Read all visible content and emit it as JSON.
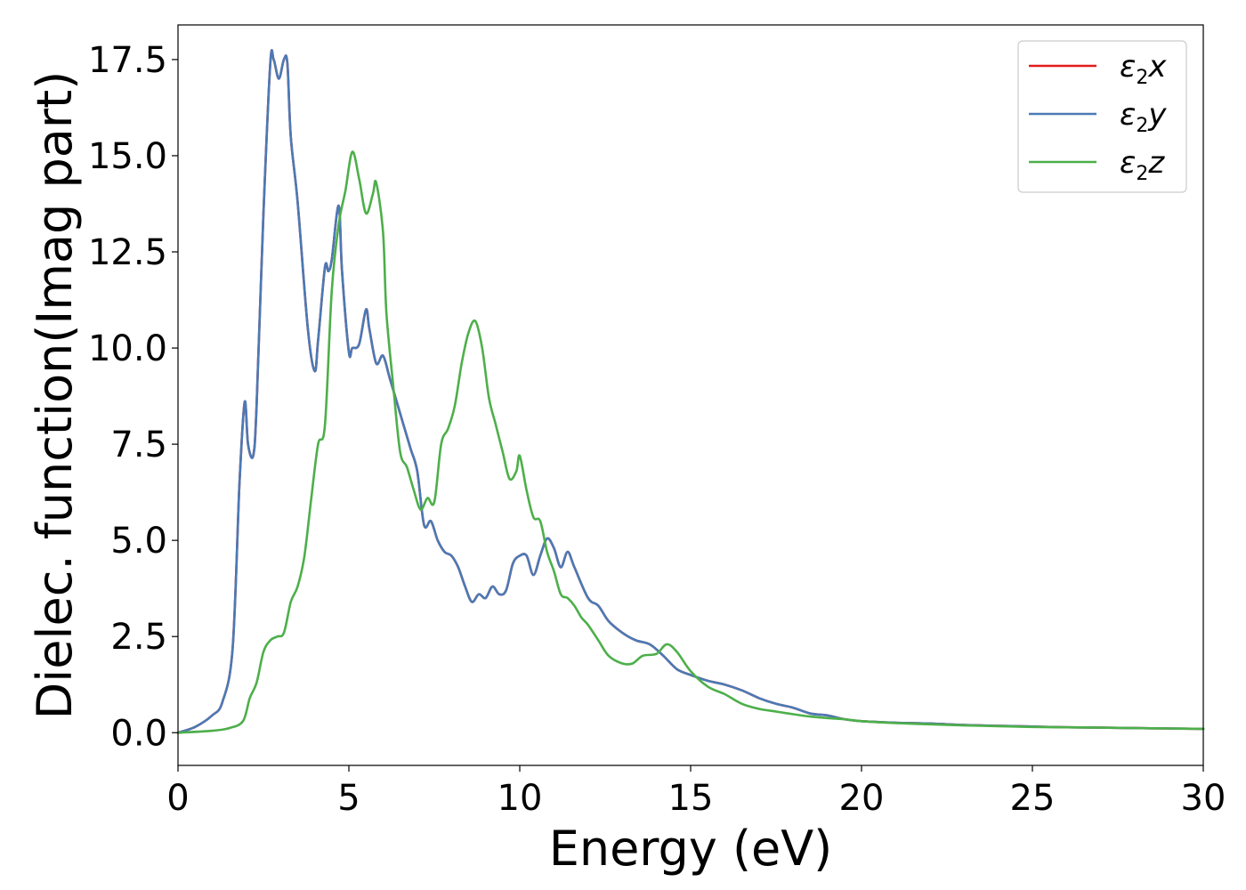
{
  "chart_data": {
    "type": "line",
    "xlabel": "Energy (eV)",
    "ylabel": "Dielec. function(Imag part)",
    "xlim": [
      0,
      30
    ],
    "ylim": [
      -0.85,
      18.4
    ],
    "xticks": [
      0,
      5,
      10,
      15,
      20,
      25,
      30
    ],
    "xtick_labels": [
      "0",
      "5",
      "10",
      "15",
      "20",
      "25",
      "30"
    ],
    "yticks": [
      0,
      2.5,
      5,
      7.5,
      10,
      12.5,
      15,
      17.5
    ],
    "ytick_labels": [
      "0.0",
      "2.5",
      "5.0",
      "7.5",
      "10.0",
      "12.5",
      "15.0",
      "17.5"
    ],
    "grid": false,
    "legend_position": "top-right",
    "series": [
      {
        "name": "ε2x",
        "legend_base": "ε",
        "legend_sub": "2",
        "legend_tail": "x",
        "color": "#e41a1c",
        "x": [
          0,
          0.5,
          1,
          1.3,
          1.6,
          1.8,
          1.95,
          2.05,
          2.2,
          2.3,
          2.5,
          2.7,
          2.8,
          2.95,
          3.1,
          3.2,
          3.3,
          3.5,
          3.8,
          4.0,
          4.1,
          4.3,
          4.4,
          4.5,
          4.7,
          4.8,
          5.0,
          5.1,
          5.3,
          5.5,
          5.6,
          5.8,
          6.0,
          6.2,
          6.5,
          6.8,
          7.0,
          7.2,
          7.4,
          7.6,
          7.8,
          8.0,
          8.2,
          8.4,
          8.6,
          8.8,
          9.0,
          9.2,
          9.4,
          9.6,
          9.8,
          10.0,
          10.2,
          10.4,
          10.6,
          10.8,
          11.0,
          11.2,
          11.4,
          11.6,
          12.0,
          12.3,
          12.6,
          13.0,
          13.4,
          13.8,
          14.2,
          14.6,
          15.0,
          15.5,
          16.0,
          16.5,
          17.0,
          17.5,
          18.0,
          18.5,
          19.0,
          19.5,
          20.0,
          21.0,
          22.0,
          23.0,
          24.0,
          25.0,
          26.0,
          27.0,
          28.0,
          29.0,
          30.0
        ],
        "values": [
          0,
          0.15,
          0.45,
          0.8,
          2.2,
          6.5,
          8.6,
          7.5,
          7.2,
          8.5,
          13.5,
          17.4,
          17.5,
          17.0,
          17.5,
          17.4,
          15.5,
          13.8,
          10.5,
          9.4,
          10.2,
          12.1,
          12.0,
          12.3,
          13.7,
          12.0,
          9.9,
          10.0,
          10.1,
          11.0,
          10.5,
          9.6,
          9.8,
          9.2,
          8.3,
          7.4,
          6.8,
          5.4,
          5.5,
          5.0,
          4.7,
          4.6,
          4.3,
          3.8,
          3.4,
          3.6,
          3.5,
          3.8,
          3.6,
          3.7,
          4.4,
          4.6,
          4.6,
          4.1,
          4.6,
          5.05,
          4.8,
          4.3,
          4.7,
          4.3,
          3.5,
          3.3,
          2.9,
          2.6,
          2.4,
          2.3,
          2.0,
          1.65,
          1.5,
          1.35,
          1.25,
          1.1,
          0.9,
          0.75,
          0.65,
          0.5,
          0.45,
          0.35,
          0.3,
          0.26,
          0.24,
          0.2,
          0.18,
          0.16,
          0.14,
          0.13,
          0.12,
          0.11,
          0.1
        ]
      },
      {
        "name": "ε2y",
        "legend_base": "ε",
        "legend_sub": "2",
        "legend_tail": "y",
        "color": "#4a7ab5",
        "x": [
          0,
          0.5,
          1,
          1.3,
          1.6,
          1.8,
          1.95,
          2.05,
          2.2,
          2.3,
          2.5,
          2.7,
          2.8,
          2.95,
          3.1,
          3.2,
          3.3,
          3.5,
          3.8,
          4.0,
          4.1,
          4.3,
          4.4,
          4.5,
          4.7,
          4.8,
          5.0,
          5.1,
          5.3,
          5.5,
          5.6,
          5.8,
          6.0,
          6.2,
          6.5,
          6.8,
          7.0,
          7.2,
          7.4,
          7.6,
          7.8,
          8.0,
          8.2,
          8.4,
          8.6,
          8.8,
          9.0,
          9.2,
          9.4,
          9.6,
          9.8,
          10.0,
          10.2,
          10.4,
          10.6,
          10.8,
          11.0,
          11.2,
          11.4,
          11.6,
          12.0,
          12.3,
          12.6,
          13.0,
          13.4,
          13.8,
          14.2,
          14.6,
          15.0,
          15.5,
          16.0,
          16.5,
          17.0,
          17.5,
          18.0,
          18.5,
          19.0,
          19.5,
          20.0,
          21.0,
          22.0,
          23.0,
          24.0,
          25.0,
          26.0,
          27.0,
          28.0,
          29.0,
          30.0
        ],
        "values": [
          0,
          0.15,
          0.45,
          0.8,
          2.2,
          6.5,
          8.6,
          7.5,
          7.2,
          8.5,
          13.5,
          17.4,
          17.5,
          17.0,
          17.5,
          17.4,
          15.5,
          13.8,
          10.5,
          9.4,
          10.2,
          12.1,
          12.0,
          12.3,
          13.7,
          12.0,
          9.9,
          10.0,
          10.1,
          11.0,
          10.5,
          9.6,
          9.8,
          9.2,
          8.3,
          7.4,
          6.8,
          5.4,
          5.5,
          5.0,
          4.7,
          4.6,
          4.3,
          3.8,
          3.4,
          3.6,
          3.5,
          3.8,
          3.6,
          3.7,
          4.4,
          4.6,
          4.6,
          4.1,
          4.6,
          5.05,
          4.8,
          4.3,
          4.7,
          4.3,
          3.5,
          3.3,
          2.9,
          2.6,
          2.4,
          2.3,
          2.0,
          1.65,
          1.5,
          1.35,
          1.25,
          1.1,
          0.9,
          0.75,
          0.65,
          0.5,
          0.45,
          0.35,
          0.3,
          0.26,
          0.24,
          0.2,
          0.18,
          0.16,
          0.14,
          0.13,
          0.12,
          0.11,
          0.1
        ]
      },
      {
        "name": "ε2z",
        "legend_base": "ε",
        "legend_sub": "2",
        "legend_tail": "z",
        "color": "#4daf4a",
        "x": [
          0,
          1,
          1.5,
          1.9,
          2.1,
          2.3,
          2.5,
          2.7,
          2.9,
          3.1,
          3.3,
          3.5,
          3.7,
          3.9,
          4.1,
          4.3,
          4.5,
          4.7,
          4.9,
          5.1,
          5.3,
          5.5,
          5.7,
          5.8,
          6.0,
          6.1,
          6.3,
          6.5,
          6.7,
          6.9,
          7.1,
          7.3,
          7.5,
          7.7,
          7.9,
          8.1,
          8.3,
          8.5,
          8.7,
          8.9,
          9.1,
          9.3,
          9.5,
          9.7,
          9.9,
          10.0,
          10.2,
          10.4,
          10.6,
          10.8,
          11.0,
          11.2,
          11.4,
          11.6,
          11.8,
          12.0,
          12.3,
          12.6,
          13.0,
          13.3,
          13.6,
          14.0,
          14.3,
          14.6,
          15.0,
          15.5,
          16.0,
          16.5,
          17.0,
          17.5,
          18.0,
          18.5,
          19.0,
          19.5,
          20.0,
          21.0,
          22.0,
          23.0,
          24.0,
          25.0,
          26.0,
          27.0,
          28.0,
          29.0,
          30.0
        ],
        "values": [
          0,
          0.05,
          0.12,
          0.3,
          0.9,
          1.3,
          2.1,
          2.4,
          2.5,
          2.6,
          3.4,
          3.8,
          4.6,
          6.1,
          7.5,
          8.0,
          11.5,
          13.2,
          14.1,
          15.1,
          14.4,
          13.5,
          14.0,
          14.3,
          13.0,
          10.9,
          9.0,
          7.3,
          6.9,
          6.3,
          5.8,
          6.1,
          6.0,
          7.5,
          7.9,
          8.5,
          9.6,
          10.4,
          10.7,
          10.0,
          8.7,
          8.0,
          7.3,
          6.6,
          6.8,
          7.2,
          6.3,
          5.6,
          5.5,
          4.7,
          4.2,
          3.6,
          3.5,
          3.3,
          3.0,
          2.8,
          2.4,
          2.0,
          1.8,
          1.8,
          2.0,
          2.05,
          2.3,
          2.1,
          1.6,
          1.2,
          1.0,
          0.75,
          0.62,
          0.55,
          0.48,
          0.42,
          0.38,
          0.35,
          0.3,
          0.25,
          0.22,
          0.19,
          0.17,
          0.15,
          0.14,
          0.13,
          0.12,
          0.11,
          0.1
        ]
      }
    ]
  }
}
